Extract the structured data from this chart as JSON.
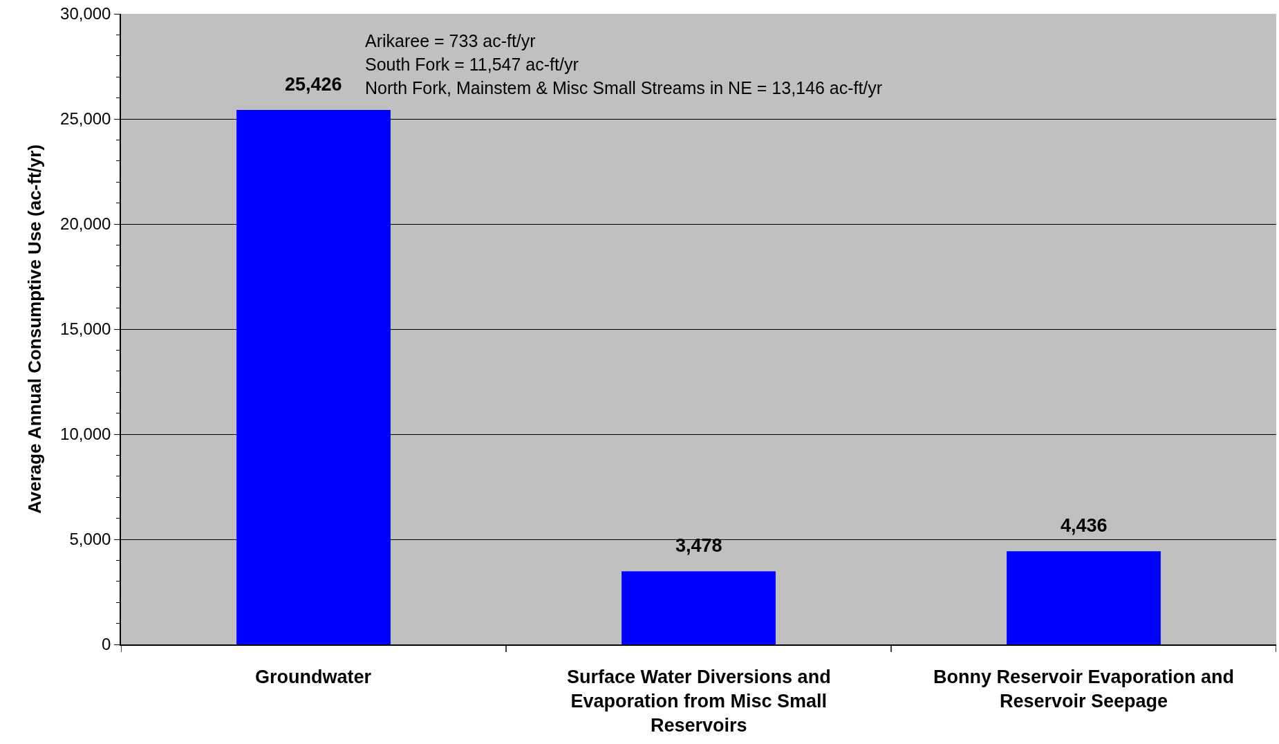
{
  "chart_data": {
    "type": "bar",
    "ylabel": "Average Annual Consumptive Use (ac-ft/yr)",
    "categories": [
      "Groundwater",
      "Surface Water Diversions and Evaporation from Misc Small Reservoirs",
      "Bonny Reservoir Evaporation and Reservoir Seepage"
    ],
    "values": [
      25426,
      3478,
      4436
    ],
    "color": "#0000ff",
    "ylim": [
      0,
      30000
    ],
    "yticks": [
      {
        "value": 0,
        "label": "0"
      },
      {
        "value": 5000,
        "label": "5,000"
      },
      {
        "value": 10000,
        "label": "10,000"
      },
      {
        "value": 15000,
        "label": "15,000"
      },
      {
        "value": 20000,
        "label": "20,000"
      },
      {
        "value": 25000,
        "label": "25,000"
      },
      {
        "value": 30000,
        "label": "30,000"
      }
    ],
    "grid": "y",
    "value_labels": [
      "25,426",
      "3,478",
      "4,436"
    ],
    "annotations": [
      "Arikaree = 733 ac-ft/yr",
      "South Fork = 11,547 ac-ft/yr",
      "North Fork, Mainstem & Misc Small Streams in NE = 13,146 ac-ft/yr"
    ]
  }
}
